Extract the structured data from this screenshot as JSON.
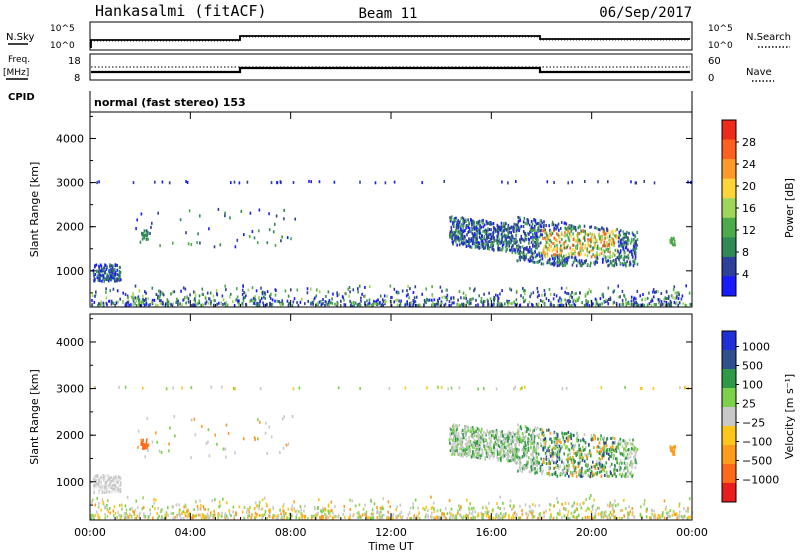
{
  "header": {
    "station": "Hankasalmi (fitACF)",
    "beam": "Beam 11",
    "date": "06/Sep/2017"
  },
  "top_panels": {
    "nsky_label": "N.Sky",
    "nsearch_label": "N.Search",
    "freq_label": "Freq.",
    "freq_unit": "[MHz]",
    "nave_label": "Nave",
    "cpid_label": "CPID",
    "cpid_value": "normal (fast stereo) 153",
    "noise_ticks_left": [
      "10^5",
      "10^0"
    ],
    "noise_ticks_right": [
      "10^5",
      "10^0"
    ],
    "freq_ticks": [
      "18",
      "8"
    ],
    "nave_ticks": [
      "60",
      "0"
    ]
  },
  "colors": {
    "power": [
      "#1a1aff",
      "#2e3f9c",
      "#2f8a55",
      "#4caa4a",
      "#9fd65a",
      "#ffd43b",
      "#ff9a2a",
      "#ff6020",
      "#ee2b1b"
    ],
    "velocity": [
      "#e81d1d",
      "#ff6a1a",
      "#ff9c1a",
      "#ffc61a",
      "#c9c9c9",
      "#7cd04a",
      "#2e9a47",
      "#2f4f8f",
      "#1e2fd8"
    ]
  },
  "chart_data": [
    {
      "type": "heatmap",
      "name": "power",
      "ylabel": "Slant Range [km]",
      "xlabel": "",
      "xlim": [
        0,
        24
      ],
      "ylim": [
        180,
        4600
      ],
      "xticks": [
        "00:00",
        "04:00",
        "08:00",
        "12:00",
        "16:00",
        "20:00",
        "00:00"
      ],
      "yticks": [
        "1000",
        "2000",
        "3000",
        "4000"
      ],
      "colorbar_label": "Power [dB]",
      "colorbar_ticks": [
        "28",
        "24",
        "20",
        "16",
        "12",
        "8",
        "4"
      ],
      "range": [
        0,
        30
      ]
    },
    {
      "type": "heatmap",
      "name": "velocity",
      "ylabel": "Slant Range [km]",
      "xlabel": "Time UT",
      "xlim": [
        0,
        24
      ],
      "ylim": [
        180,
        4600
      ],
      "xticks": [
        "00:00",
        "04:00",
        "08:00",
        "12:00",
        "16:00",
        "20:00",
        "00:00"
      ],
      "yticks": [
        "1000",
        "2000",
        "3000",
        "4000"
      ],
      "colorbar_label": "Velocity [m s⁻¹]",
      "colorbar_ticks": [
        "1000",
        "500",
        "100",
        "25",
        "−25",
        "−100",
        "−500",
        "−1000"
      ]
    }
  ]
}
